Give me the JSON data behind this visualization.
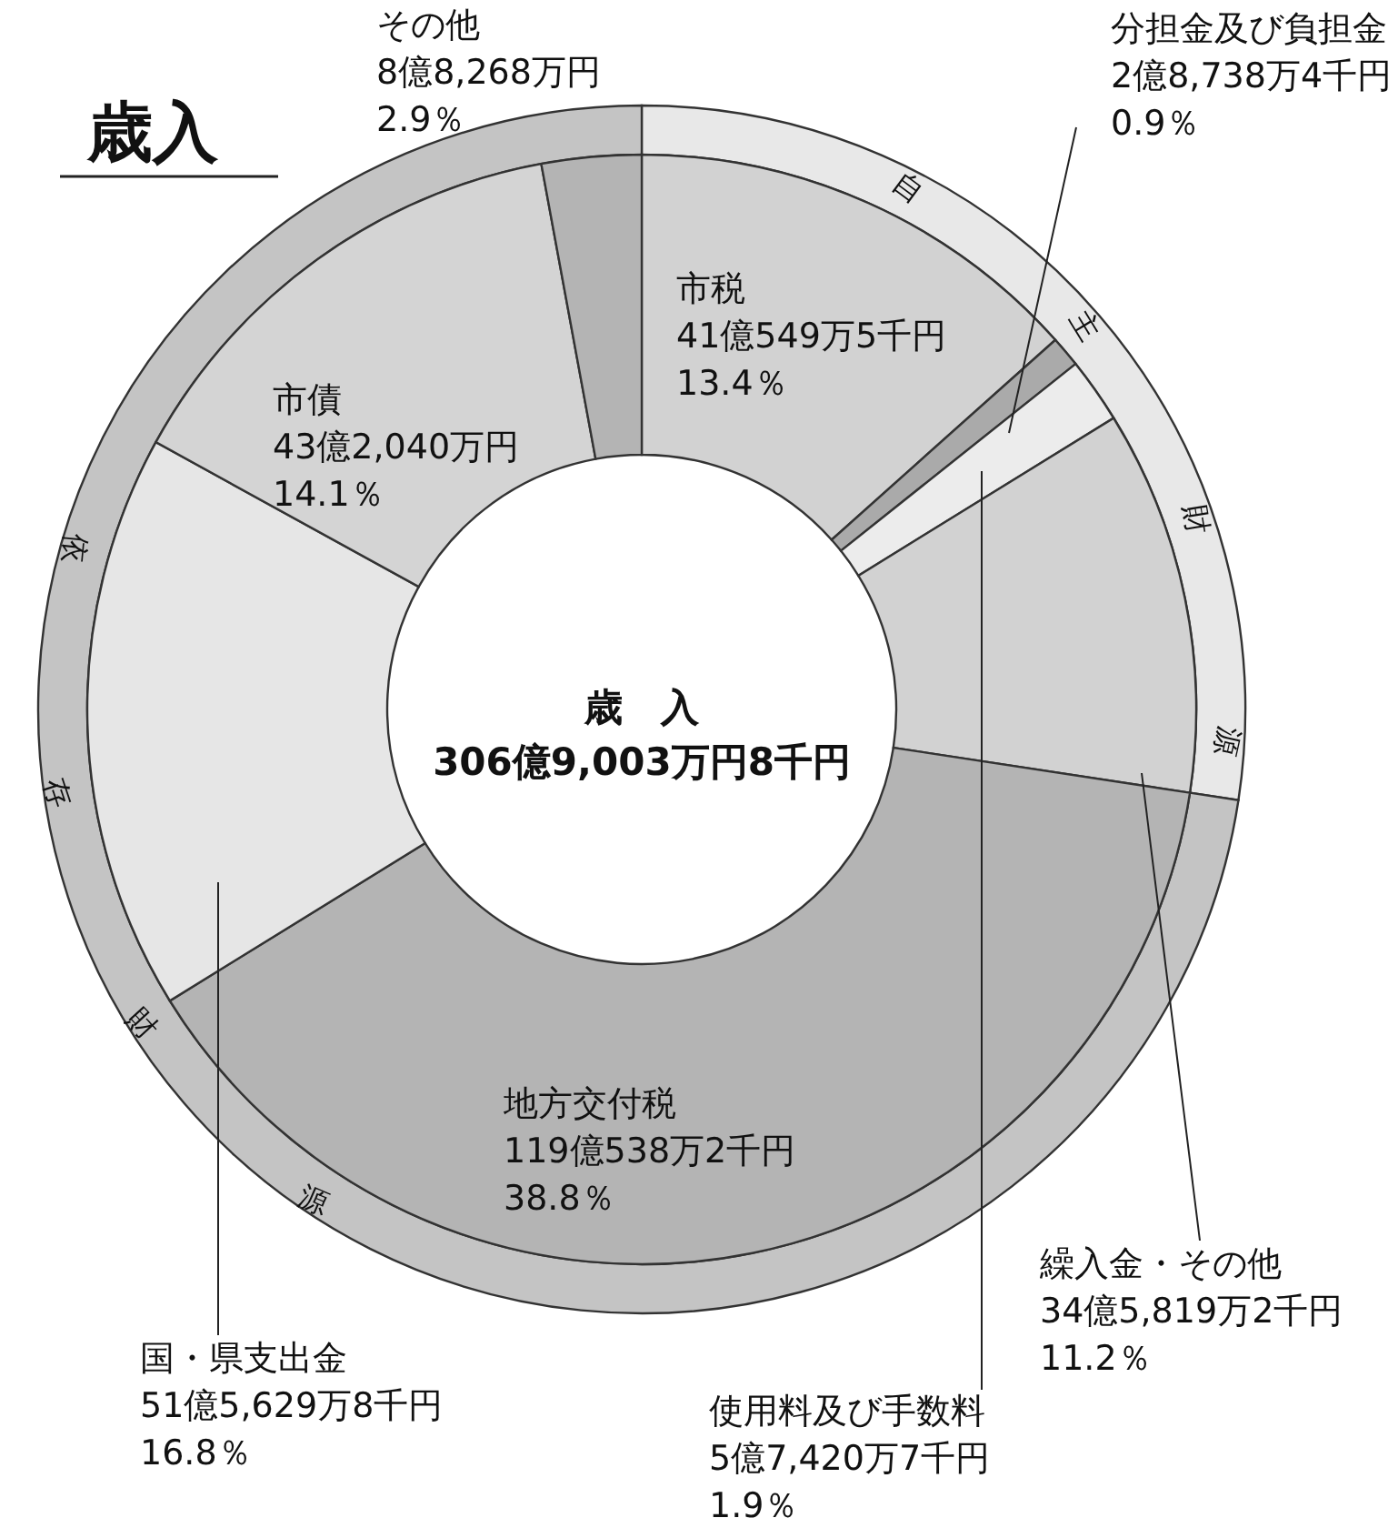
{
  "chart_data": [
    {
      "type": "donut",
      "title": "歳入",
      "annotations": [
        "歳　入",
        "306億9,003万円8千円"
      ],
      "categories": [
        "市税",
        "分担金及び負担金",
        "使用料及び手数料",
        "繰入金・その他",
        "地方交付税",
        "国・県支出金",
        "市債",
        "その他"
      ],
      "values": [
        13.4,
        0.9,
        1.9,
        11.2,
        38.8,
        16.8,
        14.1,
        2.9
      ],
      "colors": [
        "#d2d2d2",
        "#aaaaaa",
        "#ececec",
        "#d2d2d2",
        "#b4b4b4",
        "#e6e6e6",
        "#d4d4d4",
        "#b4b4b4"
      ],
      "value_labels": [
        "41億549万5千円\n13.4％",
        "2億8,738万4千円\n0.9％",
        "5億7,420万7千円\n1.9％",
        "34億5,819万2千円\n11.2％",
        "119億538万2千円\n38.8％",
        "51億5,629万8千円\n16.8％",
        "43億2,040万円\n14.1％",
        "8億8,268万円\n2.9％"
      ]
    },
    {
      "type": "donut",
      "categories": [
        "自主財源",
        "依存財源"
      ],
      "values": [
        27.4,
        72.6
      ],
      "colors": [
        "#e8e8e8",
        "#c4c4c4"
      ]
    }
  ]
}
